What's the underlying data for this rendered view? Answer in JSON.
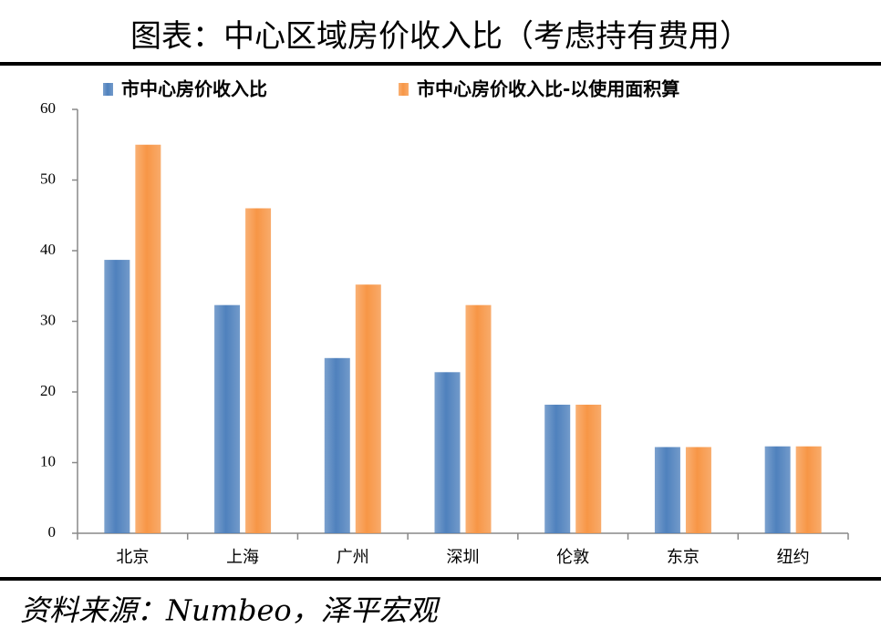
{
  "chart_data": {
    "type": "bar",
    "title": "图表：中心区域房价收入比（考虑持有费用）",
    "source": "资料来源：Numbeo，泽平宏观",
    "categories": [
      "北京",
      "上海",
      "广州",
      "深圳",
      "伦敦",
      "东京",
      "纽约"
    ],
    "series": [
      {
        "name": "市中心房价收入比",
        "color": "#4f81bd",
        "values": [
          38.7,
          32.3,
          24.8,
          22.8,
          18.2,
          12.2,
          12.3
        ]
      },
      {
        "name": "市中心房价收入比-以使用面积算",
        "color": "#f79646",
        "values": [
          55,
          46,
          35.2,
          32.3,
          18.2,
          12.2,
          12.3
        ]
      }
    ],
    "ylim": [
      0,
      60
    ],
    "yticks": [
      0,
      10,
      20,
      30,
      40,
      50,
      60
    ],
    "grid": false
  }
}
